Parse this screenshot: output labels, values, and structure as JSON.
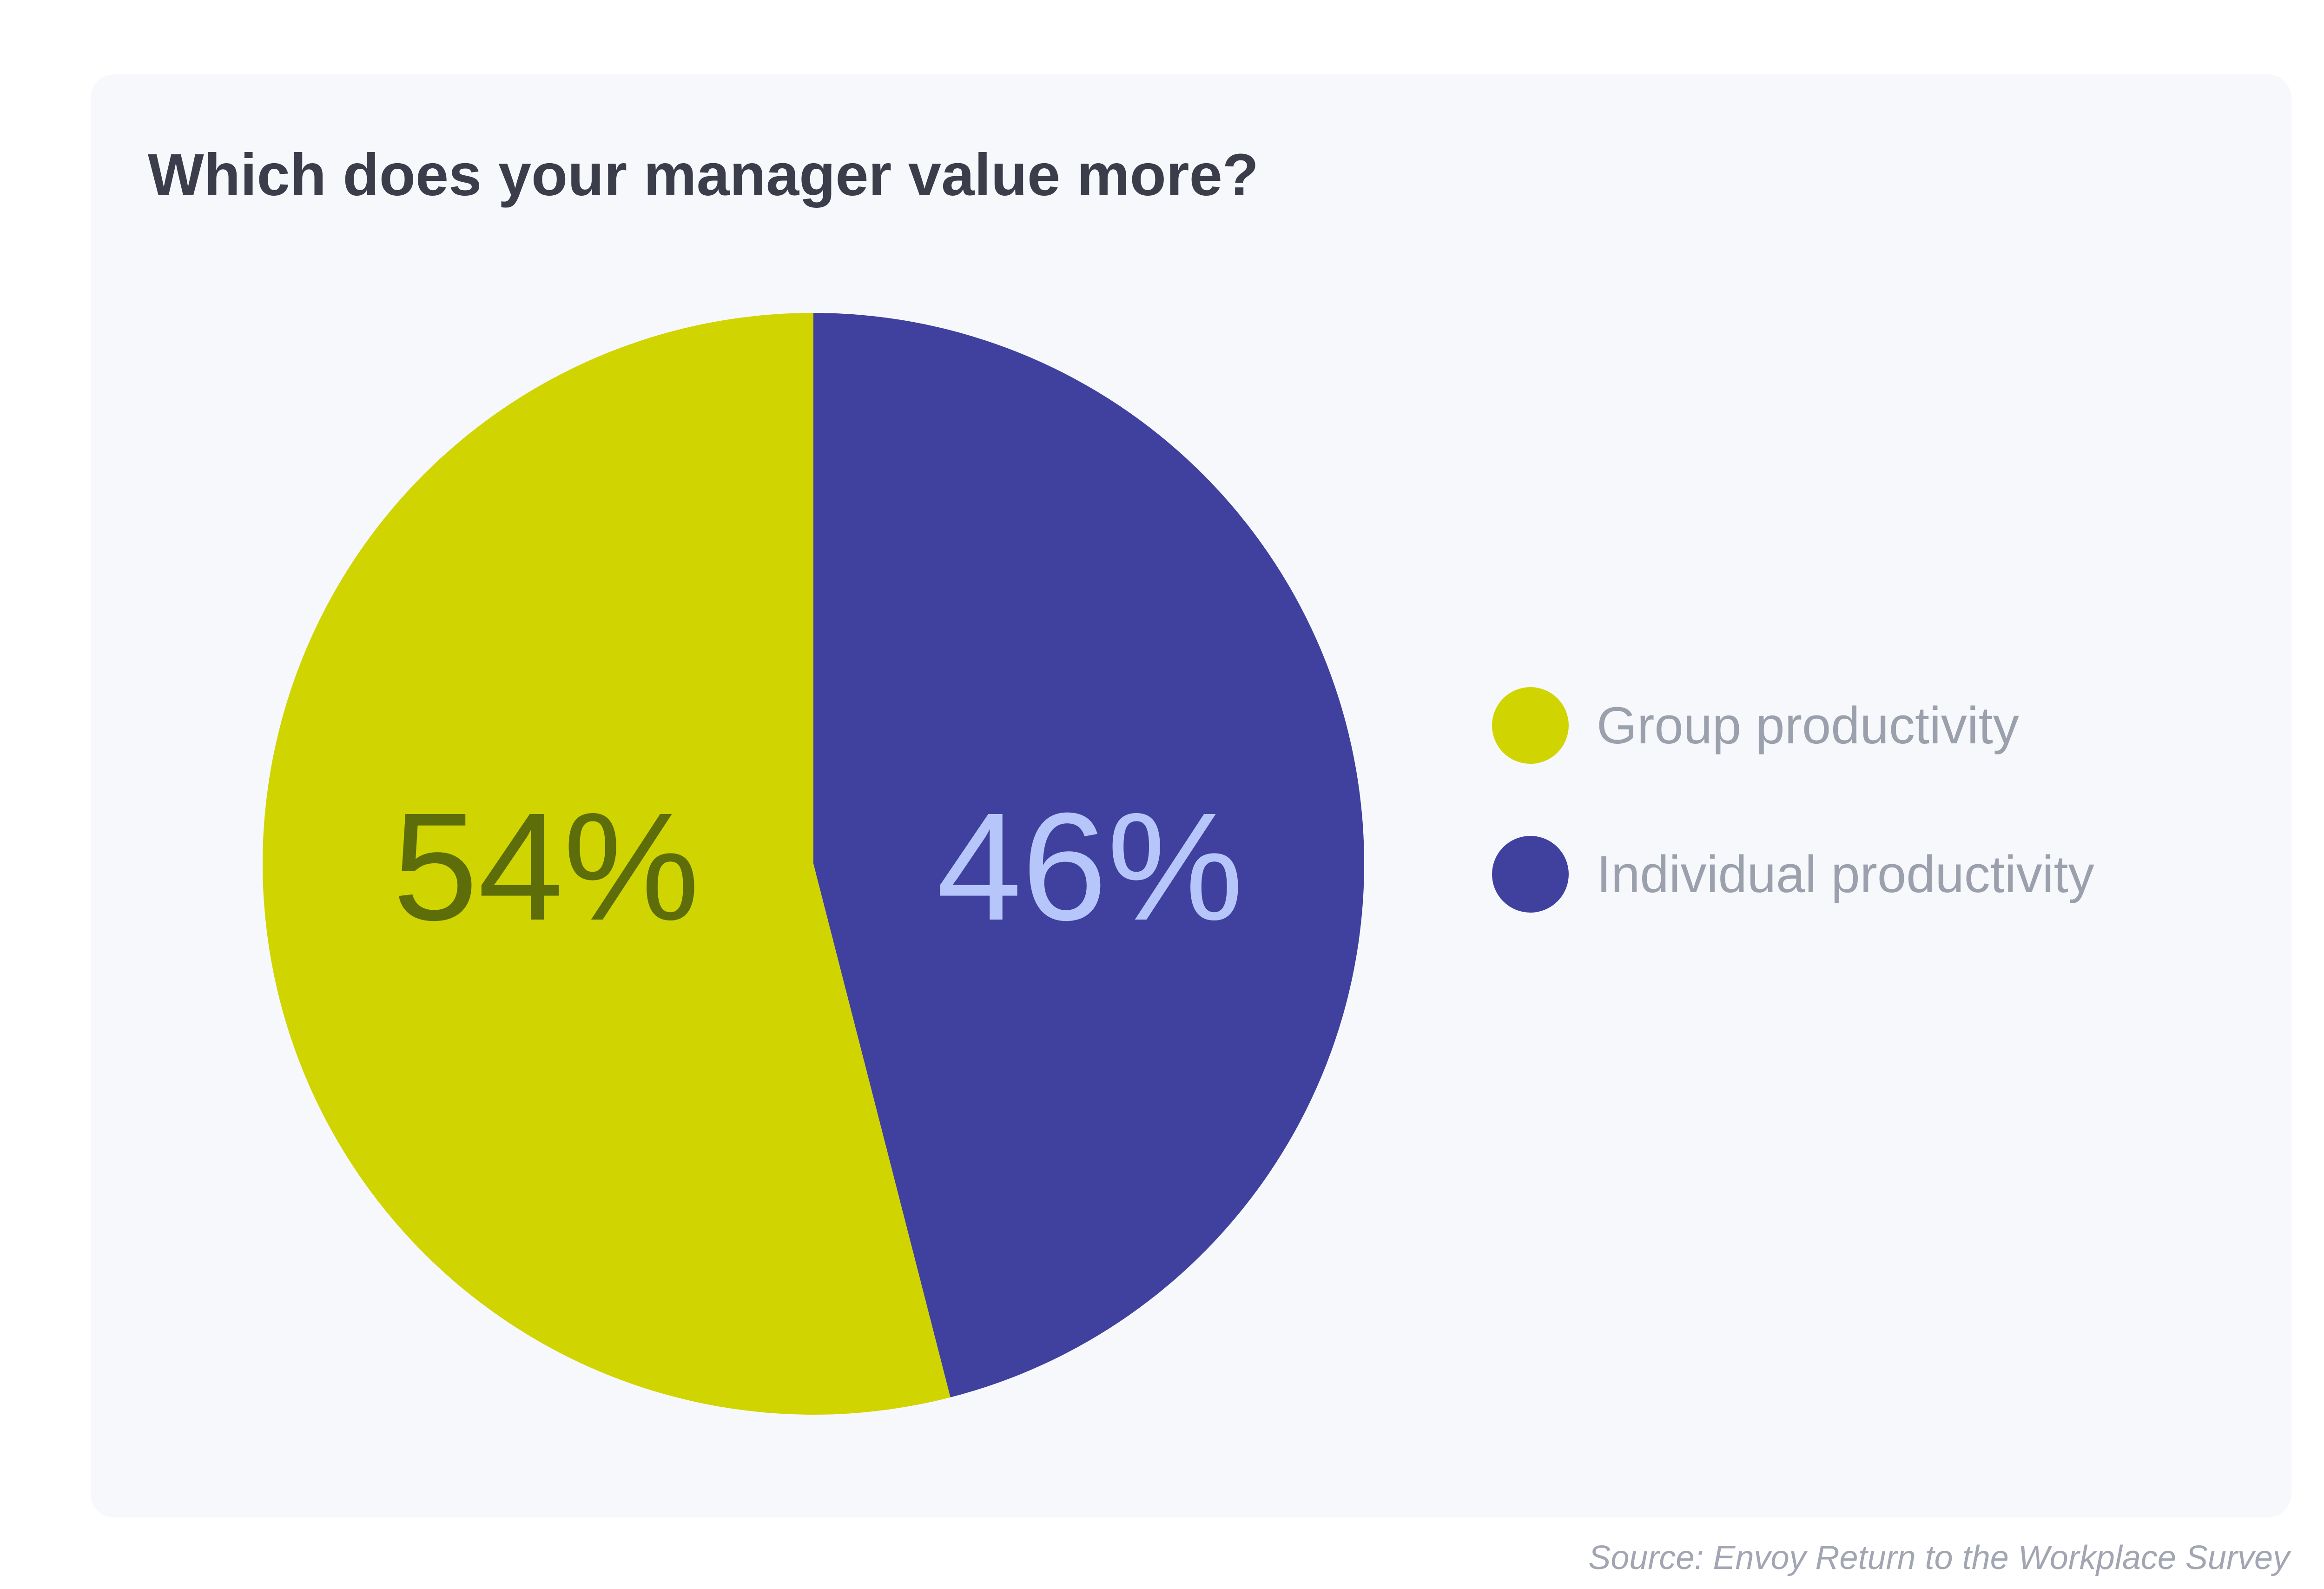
{
  "colors": {
    "group": "#d0d400",
    "individual": "#40419e",
    "group_label": "#5d6d0a",
    "individual_label": "#b6c6fa"
  },
  "chart_data": {
    "type": "pie",
    "title": "Which does your manager value more?",
    "slices": [
      {
        "name": "Group productivity",
        "value": 54,
        "label": "54%",
        "color": "#d0d400",
        "label_color": "#5d6d0a"
      },
      {
        "name": "Individual productivity",
        "value": 46,
        "label": "46%",
        "color": "#40419e",
        "label_color": "#b6c6fa"
      }
    ],
    "legend": {
      "placement": "right",
      "items": [
        {
          "label": "Group productivity",
          "color": "#d0d400"
        },
        {
          "label": "Individual productivity",
          "color": "#40419e"
        }
      ]
    },
    "source": "Source: Envoy Return to the Workplace Survey"
  }
}
